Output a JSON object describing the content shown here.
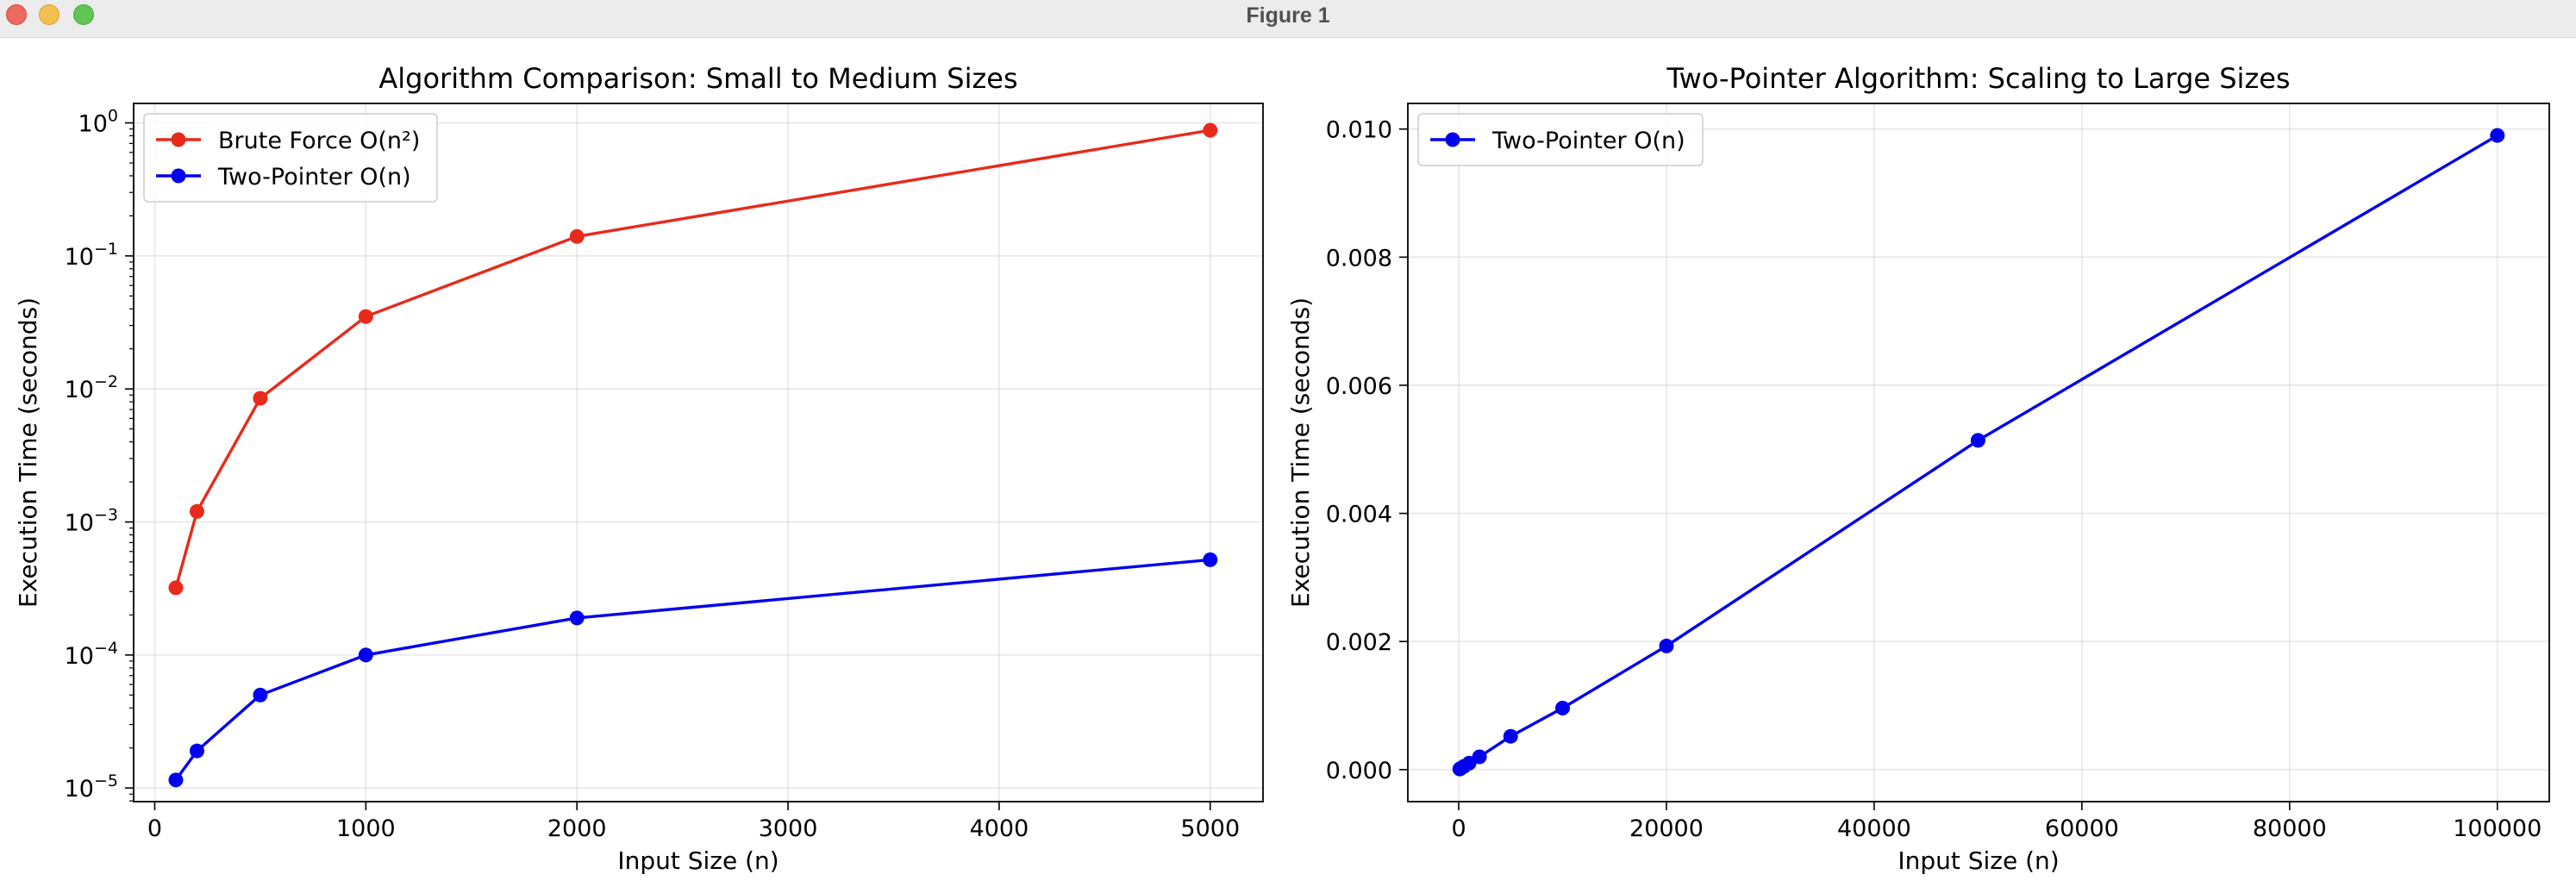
{
  "window": {
    "title": "Figure 1"
  },
  "chart_data": [
    {
      "type": "line",
      "title": "Algorithm Comparison: Small to Medium Sizes",
      "xlabel": "Input Size (n)",
      "ylabel": "Execution Time (seconds)",
      "yscale": "log",
      "xlim": [
        -100,
        5250
      ],
      "ylim": [
        7.9e-06,
        1.4
      ],
      "xticks": [
        {
          "value": 0,
          "label": "0"
        },
        {
          "value": 1000,
          "label": "1000"
        },
        {
          "value": 2000,
          "label": "2000"
        },
        {
          "value": 3000,
          "label": "3000"
        },
        {
          "value": 4000,
          "label": "4000"
        },
        {
          "value": 5000,
          "label": "5000"
        }
      ],
      "yticks": [
        {
          "value": 1e-05,
          "base": "10",
          "exp": "−5"
        },
        {
          "value": 0.0001,
          "base": "10",
          "exp": "−4"
        },
        {
          "value": 0.001,
          "base": "10",
          "exp": "−3"
        },
        {
          "value": 0.01,
          "base": "10",
          "exp": "−2"
        },
        {
          "value": 0.1,
          "base": "10",
          "exp": "−1"
        },
        {
          "value": 1,
          "base": "10",
          "exp": "0"
        }
      ],
      "grid": true,
      "legend_position": "upper left",
      "series": [
        {
          "name": "Brute Force O(n²)",
          "color": "#e8291c",
          "x": [
            100,
            200,
            500,
            1000,
            2000,
            5000
          ],
          "y": [
            0.00032,
            0.0012,
            0.0085,
            0.035,
            0.14,
            0.88
          ]
        },
        {
          "name": "Two-Pointer O(n)",
          "color": "#0000ee",
          "x": [
            100,
            200,
            500,
            1000,
            2000,
            5000
          ],
          "y": [
            1.15e-05,
            1.9e-05,
            5e-05,
            0.0001,
            0.00019,
            0.00052
          ]
        }
      ]
    },
    {
      "type": "line",
      "title": "Two-Pointer Algorithm: Scaling to Large Sizes",
      "xlabel": "Input Size (n)",
      "ylabel": "Execution Time (seconds)",
      "yscale": "linear",
      "xlim": [
        -4900,
        105000
      ],
      "ylim": [
        -0.0005,
        0.0104
      ],
      "xticks": [
        {
          "value": 0,
          "label": "0"
        },
        {
          "value": 20000,
          "label": "20000"
        },
        {
          "value": 40000,
          "label": "40000"
        },
        {
          "value": 60000,
          "label": "60000"
        },
        {
          "value": 80000,
          "label": "80000"
        },
        {
          "value": 100000,
          "label": "100000"
        }
      ],
      "yticks": [
        {
          "value": 0,
          "label": "0.000"
        },
        {
          "value": 0.002,
          "label": "0.002"
        },
        {
          "value": 0.004,
          "label": "0.004"
        },
        {
          "value": 0.006,
          "label": "0.006"
        },
        {
          "value": 0.008,
          "label": "0.008"
        },
        {
          "value": 0.01,
          "label": "0.010"
        }
      ],
      "grid": true,
      "legend_position": "upper left",
      "series": [
        {
          "name": "Two-Pointer O(n)",
          "color": "#0000ee",
          "x": [
            100,
            200,
            500,
            1000,
            2000,
            5000,
            10000,
            20000,
            50000,
            100000
          ],
          "y": [
            1e-05,
            2e-05,
            5e-05,
            0.0001,
            0.0002,
            0.00052,
            0.00096,
            0.00193,
            0.00514,
            0.0099
          ]
        }
      ]
    }
  ]
}
